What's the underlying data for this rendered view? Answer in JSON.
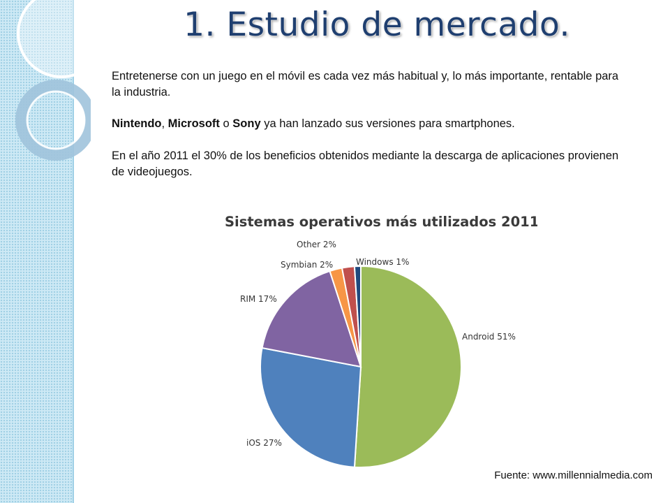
{
  "slide": {
    "title": "1. Estudio de mercado.",
    "paragraph_1": "Entretenerse con un juego en el móvil es cada vez más habitual y, lo más importante, rentable para la industria.",
    "paragraph_2": {
      "brand_1": "Nintendo",
      "sep_1": ", ",
      "brand_2": "Microsoft",
      "sep_2": " o ",
      "brand_3": "Sony",
      "rest": " ya han lanzado sus versiones para smartphones."
    },
    "paragraph_3": "En el año 2011 el 30% de los beneficios obtenidos mediante la descarga de aplicaciones provienen de videojuegos.",
    "source": "Fuente: www.millennialmedia.com"
  },
  "colors": {
    "title": "#1f3f70",
    "stripe": "#cde9f5"
  },
  "chart_data": {
    "type": "pie",
    "title": "Sistemas operativos más utilizados 2011.",
    "slices": [
      {
        "name": "Android",
        "value": 51,
        "label": "Android 51%",
        "color": "#9bbb59"
      },
      {
        "name": "iOS",
        "value": 27,
        "label": "iOS 27%",
        "color": "#4f81bd"
      },
      {
        "name": "RIM",
        "value": 17,
        "label": "RIM 17%",
        "color": "#8064a2"
      },
      {
        "name": "Symbian",
        "value": 2,
        "label": "Symbian 2%",
        "color": "#f79646"
      },
      {
        "name": "Other",
        "value": 2,
        "label": "Other 2%",
        "color": "#c0504d"
      },
      {
        "name": "Windows",
        "value": 1,
        "label": "Windows 1%",
        "color": "#1f497d"
      }
    ],
    "legend": "none",
    "data_labels": "outside"
  }
}
